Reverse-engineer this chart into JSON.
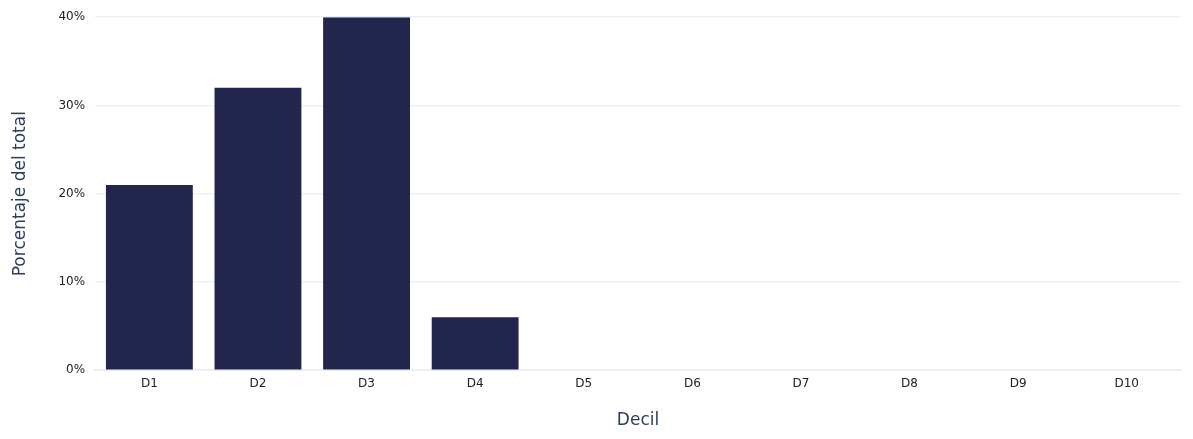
{
  "chart_data": {
    "type": "bar",
    "xlabel": "Decil",
    "ylabel": "Porcentaje del total",
    "categories": [
      "D1",
      "D2",
      "D3",
      "D4",
      "D5",
      "D6",
      "D7",
      "D8",
      "D9",
      "D10"
    ],
    "values": [
      21,
      32,
      40,
      6,
      0,
      0,
      0,
      0,
      0,
      0
    ],
    "color": "#22264c",
    "ylim": [
      0,
      40
    ],
    "yticks": [
      {
        "value": 0,
        "label": "0%"
      },
      {
        "value": 10,
        "label": "10%"
      },
      {
        "value": 20,
        "label": "20%"
      },
      {
        "value": 30,
        "label": "30%"
      },
      {
        "value": 40,
        "label": "40%"
      }
    ],
    "grid": "y",
    "legend": false
  }
}
